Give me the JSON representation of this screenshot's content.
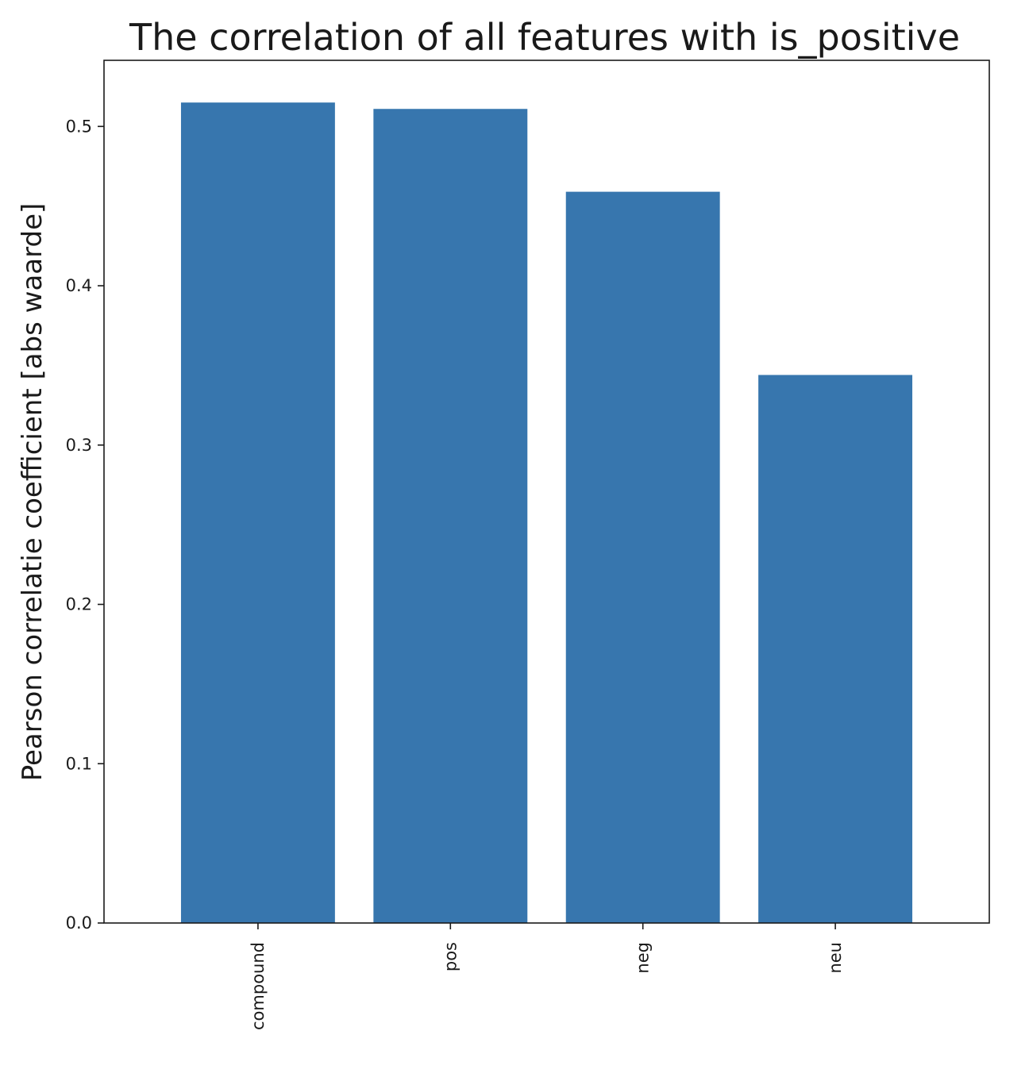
{
  "chart_data": {
    "type": "bar",
    "title": "The correlation of all features with is_positive",
    "xlabel": "",
    "ylabel": "Pearson correlatie coefficient [abs waarde]",
    "categories": [
      "compound",
      "pos",
      "neg",
      "neu"
    ],
    "values": [
      0.515,
      0.511,
      0.459,
      0.344
    ],
    "ylim": [
      0,
      0.5415
    ],
    "yticks": [
      0.0,
      0.1,
      0.2,
      0.3,
      0.4,
      0.5
    ],
    "ytick_labels": [
      "0.0",
      "0.1",
      "0.2",
      "0.3",
      "0.4",
      "0.5"
    ],
    "xtick_rotation": "vertical",
    "grid": false,
    "bar_color": "#3776ae",
    "axes_color": "#1a1a1a"
  }
}
